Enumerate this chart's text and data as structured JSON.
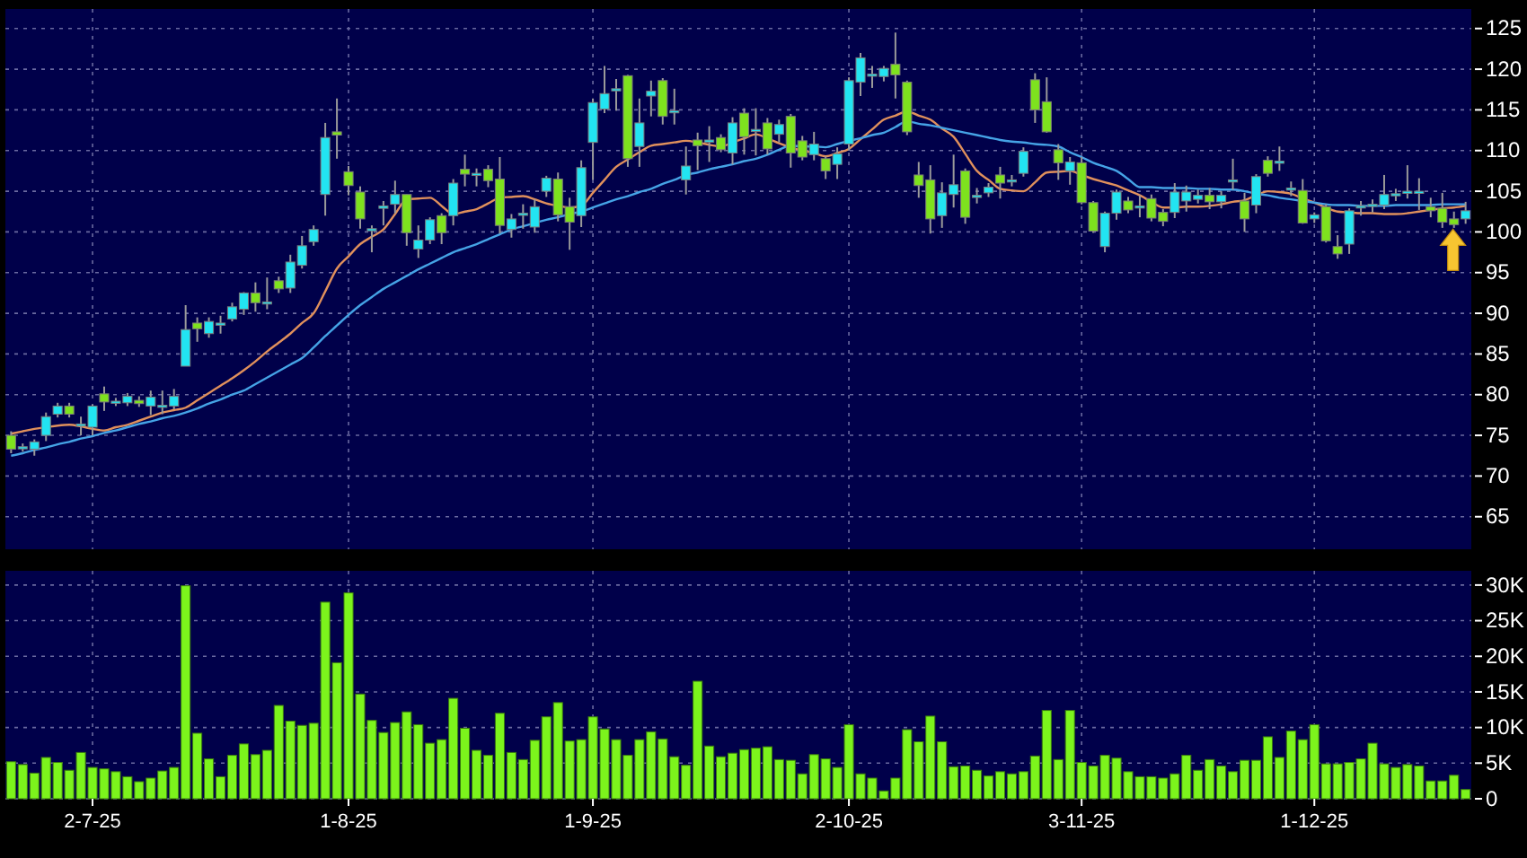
{
  "chart_data": [
    {
      "type": "candlestick",
      "categories": [
        null,
        null,
        null,
        null,
        null,
        null,
        null,
        null,
        null,
        null,
        null,
        null,
        null,
        null,
        null,
        null,
        null,
        null,
        null,
        null,
        null,
        null,
        null,
        null,
        null,
        null,
        null,
        null,
        null,
        null,
        null,
        null,
        null,
        null,
        null,
        null,
        null,
        null,
        null,
        null,
        null,
        null,
        null,
        null,
        null,
        null,
        null,
        null,
        null,
        null,
        null,
        null,
        null,
        null,
        null,
        null,
        null,
        null,
        null,
        null,
        null,
        null,
        null,
        null,
        null,
        null,
        null,
        null,
        null,
        null,
        null,
        null,
        null,
        null,
        null,
        null,
        null,
        null,
        null,
        null,
        null,
        null,
        null,
        null,
        null,
        null,
        null,
        null,
        null,
        null,
        null,
        null,
        null,
        null,
        null,
        null,
        null,
        null,
        null,
        null,
        null,
        null,
        null,
        null,
        null,
        null,
        null,
        null,
        null,
        null,
        null,
        null,
        null,
        null,
        null,
        null,
        null,
        null,
        null,
        null,
        null,
        null,
        null,
        null,
        null,
        null
      ],
      "ohlc": [
        [
          75,
          75.5,
          72.8,
          73.3
        ],
        [
          73.4,
          74,
          73,
          73.6
        ],
        [
          73.3,
          74.5,
          72.5,
          74.2
        ],
        [
          75,
          77.8,
          74.3,
          77.3
        ],
        [
          77.6,
          79,
          77.2,
          78.6
        ],
        [
          78.6,
          79,
          77.2,
          77.6
        ],
        [
          76.3,
          77.3,
          75,
          76.4
        ],
        [
          76,
          78.8,
          75,
          78.6
        ],
        [
          80.1,
          81,
          78,
          79.1
        ],
        [
          79.1,
          79.6,
          78.6,
          79.2
        ],
        [
          79,
          80.2,
          78.6,
          79.8
        ],
        [
          79.3,
          79.8,
          78.5,
          78.9
        ],
        [
          78.6,
          80.5,
          77.5,
          79.7
        ],
        [
          78.6,
          80.5,
          77.6,
          78.7
        ],
        [
          78.6,
          80.7,
          78.2,
          79.8
        ],
        [
          83.5,
          91,
          83.5,
          88
        ],
        [
          88.8,
          89.5,
          86.5,
          88.1
        ],
        [
          87.5,
          89.5,
          87,
          89
        ],
        [
          88.7,
          89.7,
          87.5,
          88.8
        ],
        [
          89.3,
          91.3,
          89,
          90.8
        ],
        [
          90.5,
          92.6,
          89.8,
          92.5
        ],
        [
          92.5,
          93.8,
          90.2,
          91.3
        ],
        [
          91.3,
          94.4,
          90.5,
          91.4
        ],
        [
          94,
          94.5,
          92.5,
          93
        ],
        [
          93.1,
          97.2,
          92.5,
          96.3
        ],
        [
          95.9,
          99.5,
          95.5,
          98.3
        ],
        [
          98.8,
          100.8,
          98.3,
          100.3
        ],
        [
          104.6,
          113.4,
          102,
          111.6
        ],
        [
          112.3,
          116.4,
          109,
          111.9
        ],
        [
          107.4,
          108.1,
          104.5,
          105.7
        ],
        [
          104.9,
          105.6,
          100.4,
          101.6
        ],
        [
          100.2,
          100.8,
          97.5,
          100.4
        ],
        [
          102.9,
          103.8,
          100.8,
          103.2
        ],
        [
          103.4,
          106.3,
          102.3,
          104.6
        ],
        [
          104.6,
          104.6,
          98.3,
          99.9
        ],
        [
          97.9,
          100.8,
          96.8,
          99
        ],
        [
          99,
          101.8,
          98.5,
          101.5
        ],
        [
          102,
          102.3,
          98.5,
          99.9
        ],
        [
          102,
          106.5,
          100.8,
          106
        ],
        [
          107.7,
          109.5,
          105.6,
          107.1
        ],
        [
          107.1,
          107.8,
          105.6,
          107.2
        ],
        [
          107.7,
          108.2,
          105.5,
          106.3
        ],
        [
          106.5,
          109.2,
          99.8,
          100.8
        ],
        [
          100.3,
          102.2,
          99.3,
          101.6
        ],
        [
          102.2,
          103.4,
          100.4,
          102.3
        ],
        [
          100.6,
          104,
          99.9,
          103.1
        ],
        [
          105,
          106.9,
          104.3,
          106.6
        ],
        [
          106.5,
          107.3,
          101.3,
          102.1
        ],
        [
          103.1,
          104.2,
          97.8,
          101.2
        ],
        [
          102,
          108.8,
          100.6,
          107.9
        ],
        [
          111,
          116.4,
          106.4,
          115.9
        ],
        [
          115.1,
          120.4,
          114.6,
          117
        ],
        [
          117.5,
          118.8,
          114.9,
          117.6
        ],
        [
          119.2,
          119.3,
          108,
          109
        ],
        [
          110.5,
          116.4,
          108,
          113.4
        ],
        [
          116.7,
          118.6,
          114.2,
          117.3
        ],
        [
          118.6,
          118.9,
          113.2,
          114.2
        ],
        [
          114.8,
          117.6,
          113.2,
          114.9
        ],
        [
          106.4,
          110.5,
          104.6,
          108.1
        ],
        [
          111.3,
          112.2,
          107.6,
          110.6
        ],
        [
          111.2,
          113,
          108.6,
          111.3
        ],
        [
          111.6,
          112,
          109.8,
          110.1
        ],
        [
          109.7,
          114.1,
          108.3,
          113.4
        ],
        [
          114.6,
          115.2,
          109.5,
          111.7
        ],
        [
          112.5,
          115.2,
          109.4,
          112.6
        ],
        [
          113.4,
          114,
          109.5,
          110.2
        ],
        [
          112,
          113.8,
          111,
          113.2
        ],
        [
          114.2,
          114.5,
          107.9,
          109.7
        ],
        [
          111.2,
          111.8,
          108.8,
          109.2
        ],
        [
          109.5,
          112.3,
          108.8,
          110.8
        ],
        [
          109,
          109.3,
          106.5,
          107.5
        ],
        [
          108.3,
          110.4,
          106.5,
          109.6
        ],
        [
          110.8,
          119,
          110,
          118.6
        ],
        [
          118.4,
          122,
          116.7,
          121.4
        ],
        [
          119.3,
          120.4,
          117.7,
          119.4
        ],
        [
          119.1,
          120.4,
          118.5,
          120.1
        ],
        [
          120.6,
          124.5,
          116.4,
          119.3
        ],
        [
          118.4,
          118.6,
          111.9,
          112.3
        ],
        [
          107,
          108.6,
          104.2,
          105.7
        ],
        [
          106.4,
          108.2,
          99.8,
          101.6
        ],
        [
          102,
          106.1,
          100.5,
          104.8
        ],
        [
          104.6,
          109.5,
          103,
          105.8
        ],
        [
          107.5,
          107.8,
          101,
          101.8
        ],
        [
          104.4,
          105.4,
          103.5,
          104.5
        ],
        [
          104.8,
          106,
          104.3,
          105.5
        ],
        [
          107,
          108,
          104.1,
          106
        ],
        [
          106.3,
          107,
          105.6,
          106.4
        ],
        [
          107.2,
          110.4,
          106.8,
          109.9
        ],
        [
          118.7,
          119.5,
          113.4,
          115
        ],
        [
          116,
          119,
          112.2,
          112.3
        ],
        [
          110.1,
          110.8,
          106.4,
          108.5
        ],
        [
          107.5,
          109.2,
          105.8,
          108.6
        ],
        [
          108.5,
          109.2,
          103.4,
          103.6
        ],
        [
          103.6,
          103.8,
          99.9,
          100.1
        ],
        [
          98.2,
          102.5,
          97.5,
          102.3
        ],
        [
          102.3,
          105.2,
          101.5,
          104.9
        ],
        [
          103.8,
          104.3,
          102.3,
          102.7
        ],
        [
          103.1,
          104.5,
          101.8,
          103.2
        ],
        [
          104.1,
          104.6,
          101.3,
          101.7
        ],
        [
          102.4,
          102.8,
          100.7,
          101.3
        ],
        [
          102.4,
          106,
          101.7,
          104.9
        ],
        [
          103.8,
          105.7,
          102.5,
          104.9
        ],
        [
          104,
          105.2,
          103.5,
          104.5
        ],
        [
          104.5,
          105.4,
          102.8,
          103.7
        ],
        [
          103.7,
          105,
          102.9,
          104.5
        ],
        [
          106.3,
          109,
          105.2,
          106.4
        ],
        [
          103.8,
          104.8,
          100,
          101.6
        ],
        [
          103.3,
          107.1,
          102.3,
          106.8
        ],
        [
          108.8,
          109.3,
          106.8,
          107.2
        ],
        [
          108.6,
          110.5,
          107.5,
          108.7
        ],
        [
          105.3,
          106.2,
          104.4,
          105.4
        ],
        [
          105.1,
          106.5,
          101,
          101.1
        ],
        [
          101.6,
          102.4,
          101.1,
          102.1
        ],
        [
          103.1,
          103.4,
          98.7,
          98.9
        ],
        [
          98.2,
          99.6,
          96.7,
          97.3
        ],
        [
          98.5,
          102.9,
          97.3,
          102.6
        ],
        [
          103.1,
          103.8,
          102,
          103.2
        ],
        [
          103.3,
          104,
          102.4,
          103.4
        ],
        [
          103.3,
          107,
          102.8,
          104.6
        ],
        [
          104.6,
          105.3,
          103.8,
          104.7
        ],
        [
          104.9,
          108.2,
          104.1,
          105
        ],
        [
          104.9,
          106.6,
          102.7,
          105
        ],
        [
          103.1,
          104.2,
          101.8,
          102.6
        ],
        [
          102.9,
          104.8,
          100.5,
          101.2
        ],
        [
          101.6,
          102.5,
          100.5,
          100.9
        ],
        [
          101.6,
          103.7,
          101,
          102.6
        ]
      ],
      "series": [
        {
          "type": "line",
          "color": "#e0905c",
          "values": [
            75.2,
            75.5,
            75.8,
            76,
            76.2,
            76.3,
            76.1,
            75.8,
            75.6,
            76,
            76.3,
            76.8,
            77.3,
            77.8,
            78.1,
            78.4,
            79.3,
            80.2,
            81.1,
            82,
            83,
            84.1,
            85.3,
            86.4,
            87.5,
            88.8,
            90,
            92.7,
            95.5,
            97,
            98.5,
            99.4,
            100.3,
            102.2,
            104,
            104.1,
            104.2,
            103.2,
            102.2,
            102.5,
            102.8,
            103.5,
            104.2,
            104.3,
            104.4,
            104,
            103.5,
            103.2,
            103,
            103.2,
            104.8,
            106.4,
            108,
            108.9,
            109.8,
            110.6,
            110.8,
            111,
            111.2,
            111,
            110.7,
            110.5,
            111,
            111.5,
            112,
            111.5,
            110.9,
            110.4,
            110,
            109.7,
            109.3,
            109.7,
            110.2,
            111.4,
            112.6,
            113.8,
            114.3,
            114.8,
            114.3,
            113.8,
            112.7,
            111.7,
            109.6,
            107.5,
            106.4,
            105.3,
            105.1,
            105,
            106.1,
            107.3,
            107.4,
            107.5,
            107,
            106.5,
            106.1,
            105.7,
            105.1,
            104.5,
            103.7,
            103,
            103,
            103.1,
            103.1,
            103.2,
            103.4,
            103.7,
            103.9,
            104.5,
            105,
            104.9,
            104.7,
            104.1,
            103.6,
            103,
            102.5,
            102.4,
            102.3,
            102.3,
            102.2,
            102.2,
            102.3,
            102.5,
            102.7,
            102.9,
            103,
            103.2
          ]
        },
        {
          "type": "line",
          "color": "#45a3e6",
          "values": [
            72.5,
            72.8,
            73.2,
            73.5,
            73.9,
            74.2,
            74.6,
            74.9,
            75.3,
            75.6,
            76,
            76.4,
            76.7,
            77.1,
            77.4,
            77.8,
            78.3,
            78.9,
            79.4,
            80,
            80.5,
            81.3,
            82.1,
            82.9,
            83.7,
            84.5,
            85.8,
            87.2,
            88.5,
            89.8,
            91,
            92,
            93,
            93.8,
            94.6,
            95.4,
            96.1,
            96.8,
            97.5,
            98,
            98.5,
            99.1,
            99.7,
            100.3,
            100.7,
            101.1,
            101.5,
            101.8,
            102.2,
            102.5,
            103,
            103.5,
            104,
            104.4,
            104.9,
            105.3,
            105.9,
            106.4,
            107,
            107.3,
            107.7,
            108,
            108.3,
            108.7,
            109,
            109.5,
            110.1,
            110.6,
            110.5,
            110.5,
            110.4,
            110.8,
            111.2,
            111.5,
            111.9,
            112.2,
            112.9,
            113.6,
            113.3,
            113.1,
            112.8,
            112.5,
            112.2,
            111.9,
            111.6,
            111.3,
            111.1,
            111,
            110.8,
            110.7,
            110.5,
            109.8,
            109.2,
            108.5,
            108,
            107.5,
            106.5,
            105.5,
            105.5,
            105.4,
            105.4,
            105.4,
            105.3,
            105.3,
            105.2,
            105.2,
            105,
            104.7,
            104.5,
            104.2,
            104,
            103.8,
            103.6,
            103.4,
            103.3,
            103.3,
            103.2,
            103.2,
            103.2,
            103.3,
            103.3,
            103.3,
            103.3,
            103.4,
            103.4,
            103.4
          ]
        }
      ],
      "ylim": [
        61,
        127.4
      ],
      "yticks": [
        65,
        70,
        75,
        80,
        85,
        90,
        95,
        100,
        105,
        110,
        115,
        120,
        125
      ],
      "grid": true,
      "tick_labels": "y"
    },
    {
      "type": "bar",
      "categories": [
        null,
        null,
        null,
        null,
        null,
        null,
        null,
        "2-7-25",
        null,
        null,
        null,
        null,
        null,
        null,
        null,
        null,
        null,
        null,
        null,
        null,
        null,
        null,
        null,
        null,
        null,
        null,
        null,
        null,
        null,
        "1-8-25",
        null,
        null,
        null,
        null,
        null,
        null,
        null,
        null,
        null,
        null,
        null,
        null,
        null,
        null,
        null,
        null,
        null,
        null,
        null,
        null,
        "1-9-25",
        null,
        null,
        null,
        null,
        null,
        null,
        null,
        null,
        null,
        null,
        null,
        null,
        null,
        null,
        null,
        null,
        null,
        null,
        null,
        null,
        null,
        "2-10-25",
        null,
        null,
        null,
        null,
        null,
        null,
        null,
        null,
        null,
        null,
        null,
        null,
        null,
        null,
        null,
        null,
        null,
        null,
        null,
        "3-11-25",
        null,
        null,
        null,
        null,
        null,
        null,
        null,
        null,
        null,
        null,
        null,
        null,
        null,
        null,
        null,
        null,
        null,
        null,
        null,
        "1-12-25",
        null,
        null,
        null,
        null,
        null,
        null,
        null,
        null,
        null,
        null,
        null,
        null,
        null
      ],
      "values": [
        5200,
        4800,
        3600,
        5800,
        5100,
        4000,
        6500,
        4400,
        4200,
        3800,
        3100,
        2400,
        2900,
        3900,
        4400,
        29900,
        9200,
        5600,
        3100,
        6100,
        7700,
        6200,
        6800,
        13100,
        10900,
        10300,
        10600,
        27600,
        19100,
        28900,
        14700,
        11000,
        9300,
        10700,
        12200,
        10400,
        7800,
        8300,
        14100,
        9900,
        6800,
        6100,
        12000,
        6500,
        5500,
        8200,
        11500,
        13500,
        8100,
        8300,
        11500,
        9800,
        8300,
        6100,
        8300,
        9400,
        8400,
        5900,
        4700,
        16500,
        7400,
        5900,
        6400,
        6900,
        7100,
        7300,
        5500,
        5400,
        3500,
        6200,
        5600,
        4400,
        10400,
        3500,
        2900,
        1100,
        2900,
        9700,
        8000,
        11600,
        8000,
        4500,
        4600,
        4000,
        3200,
        3800,
        3500,
        3800,
        6000,
        12400,
        5500,
        12400,
        5100,
        4600,
        6100,
        5700,
        3800,
        3100,
        3100,
        2900,
        3500,
        6100,
        4000,
        5500,
        4600,
        3800,
        5400,
        5400,
        8700,
        5800,
        9500,
        8300,
        10400,
        4900,
        4900,
        5100,
        5600,
        7800,
        4900,
        4400,
        4800,
        4600,
        2500,
        2500,
        3300,
        1300
      ],
      "color": "#7cf41c",
      "ylim": [
        0,
        32000
      ],
      "yticks": [
        0,
        {
          "value": 5000,
          "label": "5K"
        },
        {
          "value": 10000,
          "label": "10K"
        },
        {
          "value": 15000,
          "label": "15K"
        },
        {
          "value": 20000,
          "label": "20K"
        },
        {
          "value": 25000,
          "label": "25K"
        },
        {
          "value": 30000,
          "label": "30K"
        }
      ],
      "grid": true
    }
  ]
}
